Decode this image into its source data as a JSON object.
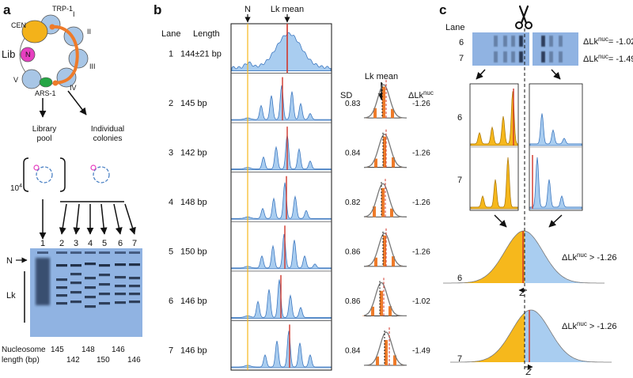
{
  "panel_a": {
    "label": "a",
    "plasmid": {
      "lib": "Lib",
      "cen": "CEN",
      "trp": "TRP-1",
      "ars": "ARS-1",
      "n": "N",
      "domains": [
        "I",
        "II",
        "III",
        "IV",
        "V"
      ]
    },
    "library_pool": [
      "Library",
      "pool"
    ],
    "individual_colonies": [
      "Individual",
      "colonies"
    ],
    "exp_base": "10",
    "exp_sup": "4",
    "gel": {
      "lanes": [
        "1",
        "2",
        "3",
        "4",
        "5",
        "6",
        "7"
      ],
      "n_label": "N",
      "lk_label": "Lk",
      "nuc_caption": [
        "Nucleosome",
        "length  (bp)"
      ],
      "lengths_top": [
        "145",
        "148",
        "146"
      ],
      "lengths_bottom": [
        "142",
        "150",
        "146"
      ]
    }
  },
  "panel_b": {
    "label": "b",
    "head_lane": "Lane",
    "head_length": "Length",
    "n_marker": "N",
    "lk_mean": "Lk mean",
    "rows": [
      {
        "lane": "1",
        "length": "144±21 bp"
      },
      {
        "lane": "2",
        "length": "145 bp",
        "sd": "0.83",
        "dlk": "-1.26"
      },
      {
        "lane": "3",
        "length": "142 bp",
        "sd": "0.84",
        "dlk": "-1.26"
      },
      {
        "lane": "4",
        "length": "148 bp",
        "sd": "0.82",
        "dlk": "-1.26"
      },
      {
        "lane": "5",
        "length": "150 bp",
        "sd": "0.86",
        "dlk": "-1.26"
      },
      {
        "lane": "6",
        "length": "146 bp",
        "sd": "0.86",
        "dlk": "-1.02"
      },
      {
        "lane": "7",
        "length": "146 bp",
        "sd": "0.84",
        "dlk": "-1.49"
      }
    ],
    "dist_head_sd": "SD",
    "dist_head_lk": "Lk mean",
    "dist_head_dlk": "ΔLk",
    "dist_head_dlk_sup": "nuc"
  },
  "panel_c": {
    "label": "c",
    "lane_head": "Lane",
    "gel_lanes": [
      "6",
      "7"
    ],
    "gel_dlk": [
      {
        "pre": "ΔLk",
        "sup": "nuc",
        "post": "= -1.02"
      },
      {
        "pre": "ΔLk",
        "sup": "nuc",
        "post": "= -1.49"
      }
    ],
    "profile_lanes": [
      "6",
      "7"
    ],
    "bell_rows": [
      {
        "lane": "6",
        "pre": "ΔLk",
        "sup": "nuc",
        "post": " > -1.26",
        "z": "Z"
      },
      {
        "lane": "7",
        "pre": "ΔLk",
        "sup": "nuc",
        "post": " > -1.26",
        "z": "Z"
      }
    ]
  },
  "colors": {
    "profile_fill": "#a9cdf0",
    "profile_stroke": "#3f79c0",
    "gold": "#f6b81c",
    "orange": "#ee7b2a",
    "red": "#d0362a",
    "gel": "#90b3e2",
    "ring": "#a8c6e6",
    "cen": "#f3b21a",
    "ars": "#26a645",
    "magenta": "#e63fc0"
  }
}
